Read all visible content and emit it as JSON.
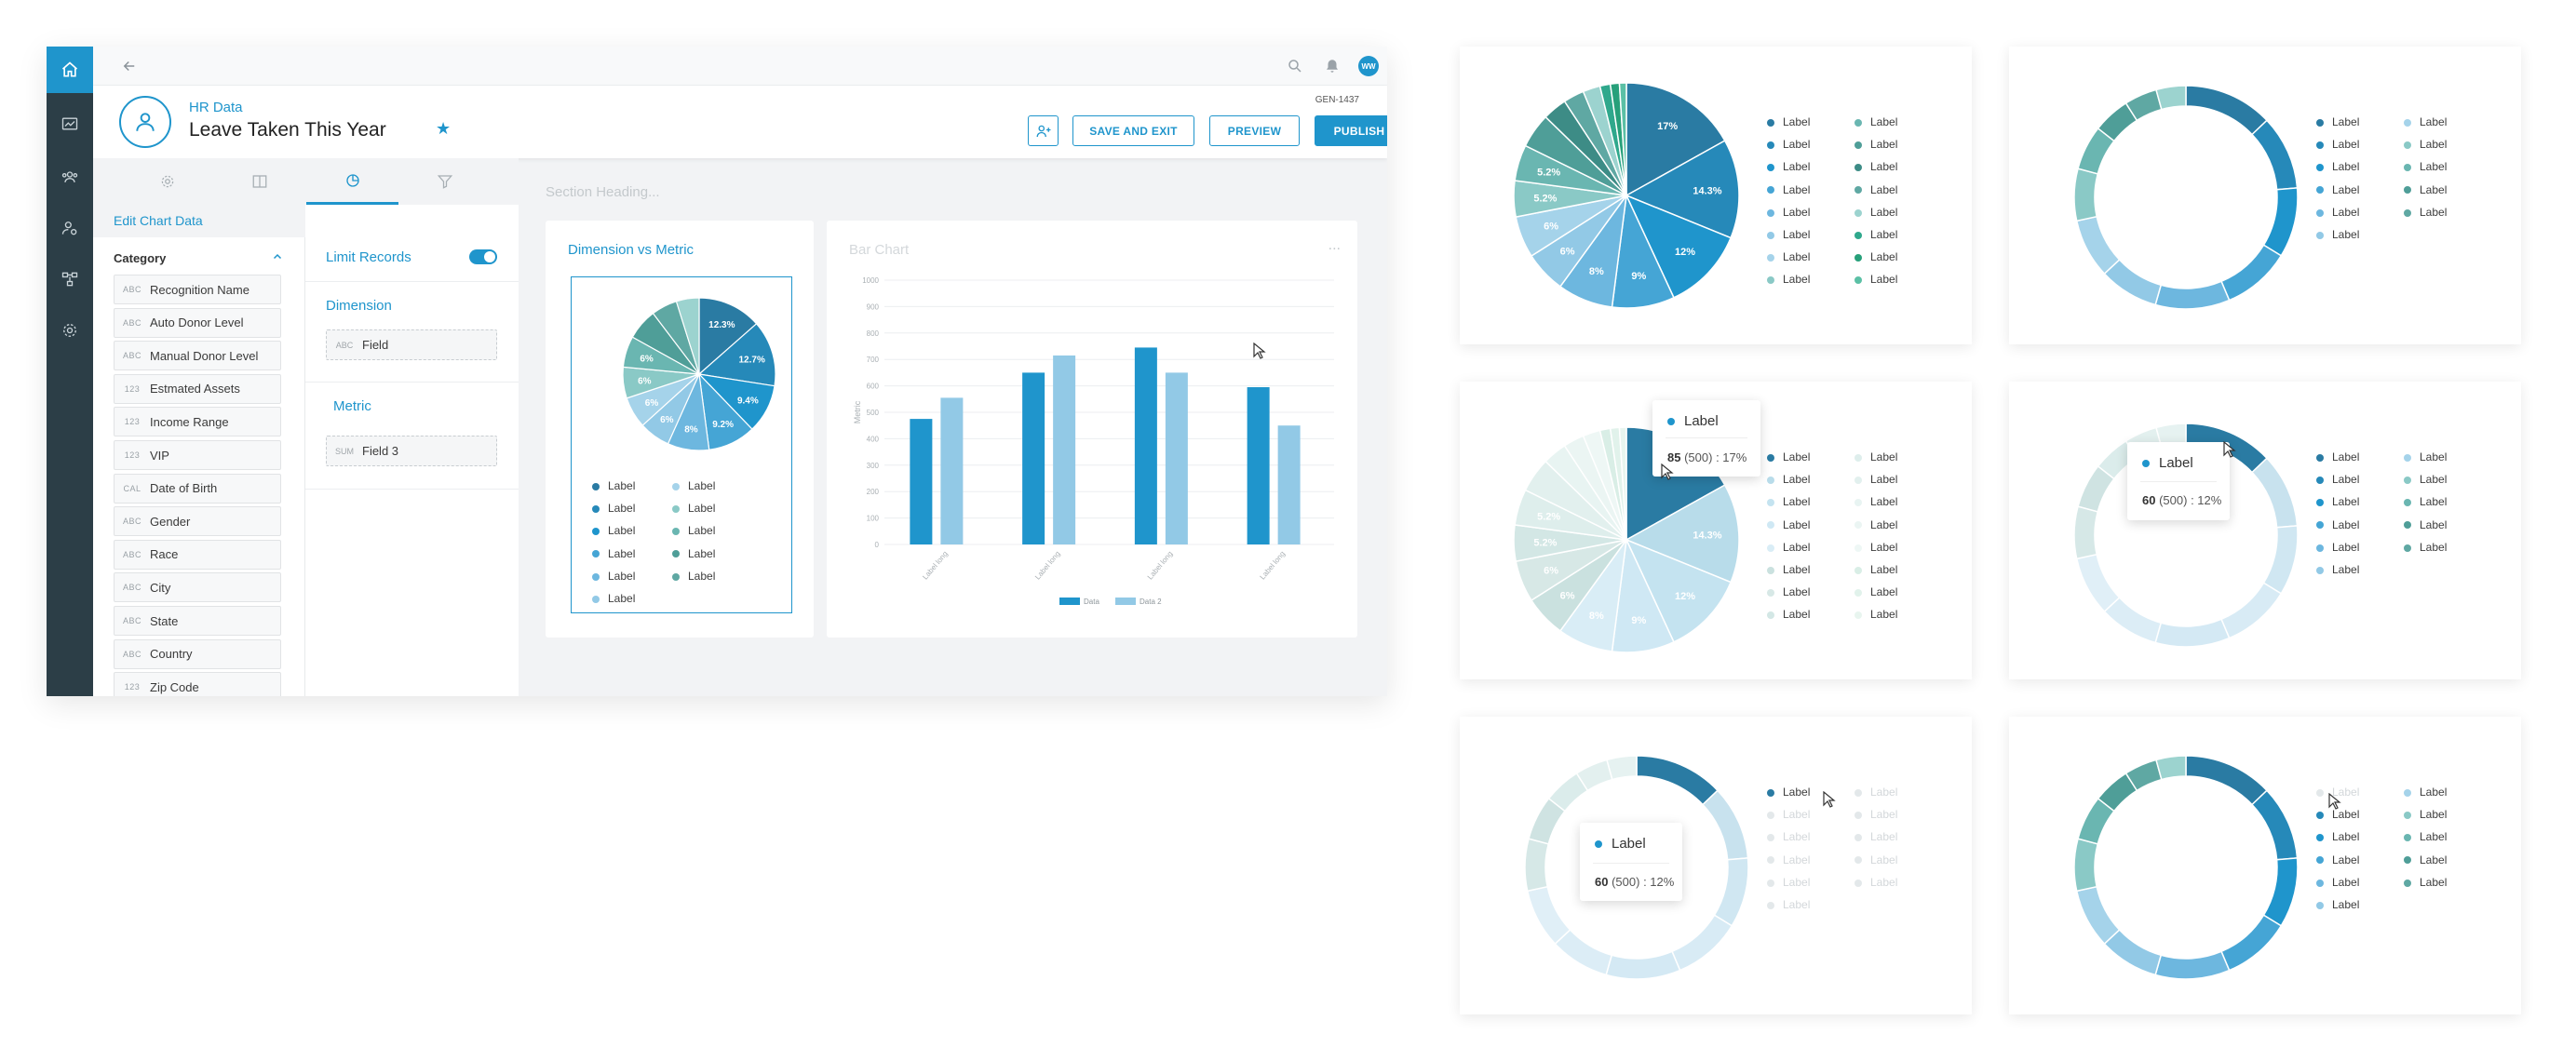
{
  "topbar": {
    "avatar_initials": "WW"
  },
  "header": {
    "breadcrumb": "HR Data",
    "title": "Leave Taken This Year",
    "report_id": "GEN-1437",
    "save_label": "SAVE AND EXIT",
    "preview_label": "PREVIEW",
    "publish_label": "PUBLISH"
  },
  "left_panel": {
    "title": "Edit Chart Data",
    "category_label": "Category",
    "fields": [
      {
        "type": "ABC",
        "label": "Recognition Name"
      },
      {
        "type": "ABC",
        "label": "Auto Donor Level"
      },
      {
        "type": "ABC",
        "label": "Manual Donor Level"
      },
      {
        "type": "123",
        "label": "Estmated Assets"
      },
      {
        "type": "123",
        "label": "Income Range"
      },
      {
        "type": "123",
        "label": "VIP"
      },
      {
        "type": "CAL",
        "label": "Date of Birth"
      },
      {
        "type": "ABC",
        "label": "Gender"
      },
      {
        "type": "ABC",
        "label": "Race"
      },
      {
        "type": "ABC",
        "label": "City"
      },
      {
        "type": "ABC",
        "label": "State"
      },
      {
        "type": "ABC",
        "label": "Country"
      },
      {
        "type": "123",
        "label": "Zip Code"
      }
    ]
  },
  "mid_panel": {
    "limit_label": "Limit Records",
    "dimension_label": "Dimension",
    "dimension_type": "ABC",
    "dimension_field": "Field",
    "metric_label": "Metric",
    "metric_type": "SUM",
    "metric_field": "Field 3"
  },
  "canvas": {
    "section_heading": "Section Heading...",
    "card1_title": "Dimension vs Metric",
    "card2_title": "Bar Chart",
    "card2_menu": "..."
  },
  "legend_label": "Label",
  "tooltips": [
    {
      "label": "Label",
      "value": "85",
      "total": "(500)",
      "pct": ": 17%"
    },
    {
      "label": "Label",
      "value": "60",
      "total": "(500)",
      "pct": ": 12%"
    },
    {
      "label": "Label",
      "value": "60",
      "total": "(500)",
      "pct": ": 12%"
    }
  ],
  "colors": {
    "accent": "#1f95cc",
    "rail": "#2c3e47"
  },
  "chart_data": [
    {
      "type": "pie",
      "id": "main-pie",
      "values": [
        12.3,
        12.7,
        9.4,
        9.2,
        8,
        6,
        6,
        6,
        6,
        6,
        5,
        4.4
      ],
      "data_labels": [
        "12.3%",
        "12.7%",
        "9.4%",
        "9.2%",
        "8%",
        "6%",
        "6%",
        "6%",
        "6%",
        "",
        "",
        ""
      ]
    },
    {
      "type": "bar",
      "id": "bar-chart",
      "title": "Bar Chart",
      "categories": [
        "Label long",
        "Label long",
        "Label long",
        "Label long"
      ],
      "ylabel": "Metric",
      "ylim": [
        0,
        1000
      ],
      "yticks": [
        0,
        100,
        200,
        300,
        400,
        500,
        600,
        700,
        800,
        900,
        1000
      ],
      "series": [
        {
          "name": "Data",
          "values": [
            475,
            650,
            745,
            595
          ]
        },
        {
          "name": "Data 2",
          "values": [
            555,
            715,
            650,
            450
          ]
        }
      ]
    },
    {
      "type": "pie",
      "id": "pie-a",
      "values": [
        17,
        14.3,
        12,
        9,
        8,
        6,
        6,
        5.2,
        5.2,
        5,
        3.5,
        3,
        2.5,
        1.5,
        1.3,
        1
      ],
      "data_labels": [
        "17%",
        "14.3%",
        "12%",
        "9%",
        "8%",
        "6%",
        "6%",
        "5.2%",
        "5.2%",
        "",
        "",
        "",
        "",
        "",
        "",
        ""
      ]
    },
    {
      "type": "pie",
      "id": "pie-c",
      "values": [
        17,
        14.3,
        12,
        9,
        8,
        6,
        6,
        5.2,
        5.2,
        5,
        3.5,
        3,
        2.5,
        1.5,
        1.3,
        1
      ],
      "data_labels": [
        "",
        "14.3%",
        "12%",
        "9%",
        "8%",
        "6%",
        "6%",
        "5.2%",
        "5.2%",
        "",
        "",
        "",
        "",
        "",
        "",
        ""
      ]
    },
    {
      "type": "pie",
      "id": "donut-b",
      "values": [
        12,
        10,
        9.4,
        9.2,
        10,
        8,
        8,
        7,
        6,
        5,
        4.4,
        4
      ]
    },
    {
      "type": "pie",
      "id": "donut-d",
      "values": [
        12,
        10,
        9.4,
        9.2,
        10,
        8,
        8,
        7,
        6,
        5,
        4.4,
        4
      ]
    },
    {
      "type": "pie",
      "id": "donut-e",
      "values": [
        12,
        10,
        9.4,
        9.2,
        10,
        8,
        8,
        7,
        6,
        5,
        4.4,
        4
      ]
    },
    {
      "type": "pie",
      "id": "donut-f",
      "values": [
        12,
        10,
        9.4,
        9.2,
        10,
        8,
        8,
        7,
        6,
        5,
        4.4,
        4
      ]
    }
  ]
}
